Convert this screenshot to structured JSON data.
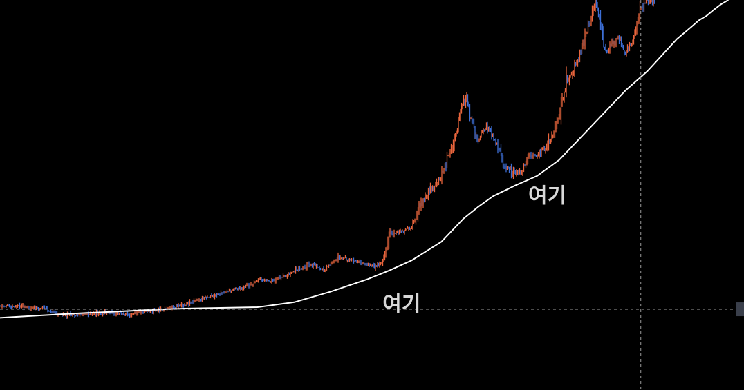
{
  "chart_data": {
    "type": "candlestick",
    "title": "",
    "xlabel": "",
    "ylabel": "",
    "xlim": [
      0,
      100
    ],
    "ylim": [
      0,
      100
    ],
    "grid": false,
    "colors": {
      "background": "#000000",
      "up": "#e8643c",
      "down": "#3d6fd6",
      "moving_average": "#ffffff",
      "crosshair": "#9a9a9a",
      "annotation": "#d8d8d8",
      "price_marker": "#3a3f4b"
    },
    "price_series": {
      "name": "",
      "x": [
        0,
        3,
        6,
        8,
        10,
        12,
        15,
        17,
        20,
        22,
        25,
        27,
        29,
        30,
        32,
        34,
        35,
        37,
        39,
        40,
        42,
        43,
        44,
        45,
        46,
        48,
        50,
        51,
        52,
        53,
        54,
        55,
        56,
        57,
        58,
        59,
        60,
        61,
        62,
        62.8,
        63.5,
        64,
        65,
        66,
        67,
        68,
        68.5,
        69,
        70,
        71,
        72,
        73,
        74,
        75,
        76,
        76.5,
        77,
        78,
        79,
        80,
        81,
        82,
        82.5,
        83,
        84,
        85,
        86,
        86.5,
        87,
        88,
        89
      ],
      "y": [
        14.0,
        13.6,
        13.2,
        11.6,
        11.3,
        11.6,
        12.1,
        11.5,
        12.4,
        12.8,
        14.3,
        15.7,
        16.7,
        17.4,
        18.7,
        19.4,
        21.2,
        21.1,
        22.6,
        23.6,
        25.6,
        25.3,
        24.0,
        25.6,
        27.5,
        26.7,
        25.7,
        25.0,
        26.4,
        34.1,
        34.5,
        35.1,
        36.0,
        42.0,
        45.0,
        47.5,
        50.3,
        56.0,
        61.8,
        71.0,
        72.4,
        66.7,
        60.0,
        65.0,
        61.2,
        58.0,
        53.2,
        52.5,
        51.0,
        51.8,
        56.4,
        56.5,
        58.4,
        61.0,
        68.0,
        72.5,
        77.5,
        80.3,
        86.0,
        92.6,
        100.0,
        88.4,
        84.6,
        87.3,
        89.4,
        85.0,
        88.1,
        92.0,
        97.5,
        100.0,
        100.0
      ]
    },
    "moving_average": {
      "name": "",
      "x": [
        0,
        5,
        10,
        15,
        20,
        25,
        30,
        35,
        40,
        45,
        50,
        53,
        56,
        60,
        63,
        65,
        67,
        70,
        73,
        76,
        79,
        82,
        85,
        88,
        90,
        92,
        94,
        95,
        96,
        97,
        98,
        99
      ],
      "y": [
        10.6,
        11.2,
        11.8,
        12.3,
        12.8,
        13.2,
        13.4,
        13.6,
        15.0,
        18.0,
        21.5,
        24.0,
        26.8,
        32.0,
        38.5,
        41.8,
        44.8,
        47.8,
        50.5,
        55.0,
        61.5,
        68.0,
        74.5,
        80.0,
        84.5,
        89.0,
        92.5,
        94.3,
        95.5,
        97.2,
        98.8,
        100.0
      ]
    },
    "crosshair": {
      "x": 87.1,
      "y": 13.0
    },
    "annotations": [
      {
        "text": "여기",
        "x": 71.8,
        "y": 43.0
      },
      {
        "text": "여기",
        "x": 52.0,
        "y": 12.5
      }
    ]
  }
}
